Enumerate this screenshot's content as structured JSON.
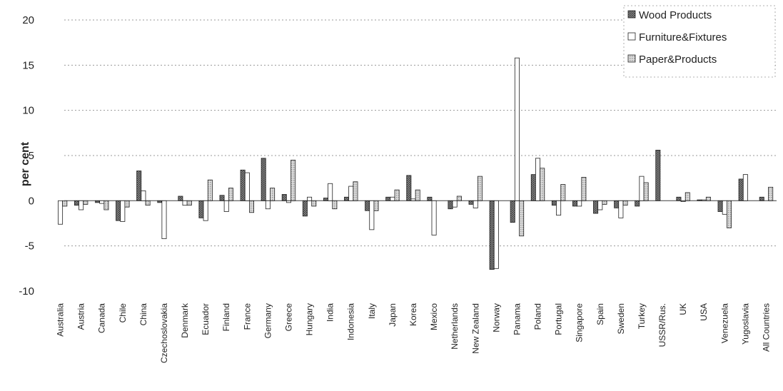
{
  "chart_data": {
    "type": "bar",
    "ylabel": "per cent",
    "ylim": [
      -10,
      20
    ],
    "yticks": [
      "-10",
      "-5",
      "0",
      "5",
      "10",
      "15",
      "20"
    ],
    "grid": true,
    "legend_position": "top-right",
    "categories": [
      "Australia",
      "Austria",
      "Canada",
      "Chile",
      "China",
      "Czechoslovakia",
      "Denmark",
      "Ecuador",
      "Finland",
      "France",
      "Germany",
      "Greece",
      "Hungary",
      "India",
      "Indonesia",
      "Italy",
      "Japan",
      "Korea",
      "Mexico",
      "Netherlands",
      "New Zealand",
      "Norway",
      "Panama",
      "Poland",
      "Portugal",
      "Singapore",
      "Spain",
      "Sweden",
      "Turkey",
      "USSR/Rus.",
      "UK",
      "USA",
      "Venezuela",
      "Yugoslavia",
      "All Countries"
    ],
    "series": [
      {
        "name": "Wood Products",
        "color": "#6e6e6e",
        "values": [
          0.0,
          -0.5,
          -0.2,
          -2.2,
          3.3,
          -0.2,
          0.5,
          -1.9,
          0.6,
          3.4,
          4.7,
          0.7,
          -1.7,
          0.3,
          0.4,
          -1.1,
          0.4,
          2.8,
          0.4,
          -0.9,
          -0.4,
          -7.6,
          -2.4,
          2.9,
          -0.5,
          -0.6,
          -1.4,
          -0.8,
          -0.6,
          5.6,
          0.4,
          0.1,
          -1.2,
          2.4,
          0.4
        ]
      },
      {
        "name": "Furniture&Fixtures",
        "color": "#ffffff",
        "values": [
          -2.6,
          -1.0,
          -0.3,
          -2.3,
          1.1,
          -4.2,
          -0.5,
          -2.2,
          -1.2,
          3.1,
          -0.9,
          -0.2,
          0.4,
          1.9,
          1.6,
          -3.2,
          0.4,
          0.2,
          -3.8,
          -0.7,
          -0.8,
          -7.5,
          15.8,
          4.7,
          -1.6,
          -0.6,
          -1.0,
          -1.9,
          2.7,
          0.0,
          -0.1,
          0.1,
          -1.5,
          2.9,
          0.0
        ]
      },
      {
        "name": "Paper&Products",
        "color": "#c4c4c4",
        "values": [
          -0.6,
          -0.4,
          -1.0,
          -0.7,
          -0.5,
          0.0,
          -0.5,
          2.3,
          1.4,
          -1.3,
          1.4,
          4.5,
          -0.6,
          -0.9,
          2.1,
          -1.1,
          1.2,
          1.2,
          0.0,
          0.5,
          2.7,
          0.0,
          -3.9,
          3.6,
          1.8,
          2.6,
          -0.4,
          -0.5,
          2.0,
          0.0,
          0.9,
          0.4,
          -3.0,
          0.0,
          1.5
        ]
      }
    ]
  }
}
